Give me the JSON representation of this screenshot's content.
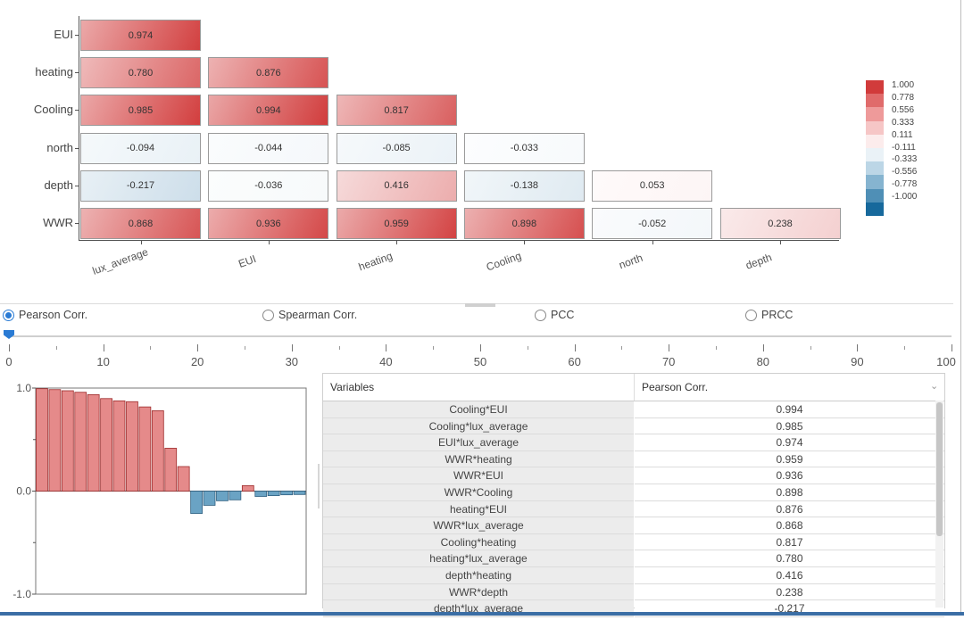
{
  "heatmap": {
    "row_labels": [
      "EUI",
      "heating",
      "Cooling",
      "north",
      "depth",
      "WWR"
    ],
    "col_labels": [
      "lux_average",
      "EUI",
      "heating",
      "Cooling",
      "north",
      "depth"
    ],
    "cells": [
      [
        "0.974"
      ],
      [
        "0.780",
        "0.876"
      ],
      [
        "0.985",
        "0.994",
        "0.817"
      ],
      [
        "-0.094",
        "-0.044",
        "-0.085",
        "-0.033"
      ],
      [
        "-0.217",
        "-0.036",
        "0.416",
        "-0.138",
        "0.053"
      ],
      [
        "0.868",
        "0.936",
        "0.959",
        "0.898",
        "-0.052",
        "0.238"
      ]
    ],
    "legend": {
      "labels": [
        "1.000",
        "0.778",
        "0.556",
        "0.333",
        "0.111",
        "-0.111",
        "-0.333",
        "-0.556",
        "-0.778",
        "-1.000"
      ],
      "colors": [
        "#d13b3b",
        "#e06b6b",
        "#ee9a9a",
        "#f6c6c6",
        "#fcecec",
        "#eaf2f7",
        "#bcd6e6",
        "#86b4d0",
        "#4f8fb6",
        "#17699c"
      ]
    }
  },
  "methods": {
    "options": [
      "Pearson Corr.",
      "Spearman Corr.",
      "PCC",
      "PRCC"
    ],
    "selected": "Pearson Corr."
  },
  "slider": {
    "value": 0,
    "min": 0,
    "max": 100,
    "tick_labels": [
      "0",
      "10",
      "20",
      "30",
      "40",
      "50",
      "60",
      "70",
      "80",
      "90",
      "100"
    ]
  },
  "bar_chart": {
    "y_ticks": [
      "1.0",
      "0.0",
      "-1.0"
    ],
    "values": [
      0.994,
      0.985,
      0.974,
      0.959,
      0.936,
      0.898,
      0.876,
      0.868,
      0.817,
      0.78,
      0.416,
      0.238,
      -0.217,
      -0.138,
      -0.094,
      -0.085,
      0.053,
      -0.052,
      -0.044,
      -0.036,
      -0.033
    ]
  },
  "table": {
    "headers": [
      "Variables",
      "Pearson Corr."
    ],
    "rows": [
      [
        "Cooling*EUI",
        "0.994"
      ],
      [
        "Cooling*lux_average",
        "0.985"
      ],
      [
        "EUI*lux_average",
        "0.974"
      ],
      [
        "WWR*heating",
        "0.959"
      ],
      [
        "WWR*EUI",
        "0.936"
      ],
      [
        "WWR*Cooling",
        "0.898"
      ],
      [
        "heating*EUI",
        "0.876"
      ],
      [
        "WWR*lux_average",
        "0.868"
      ],
      [
        "Cooling*heating",
        "0.817"
      ],
      [
        "heating*lux_average",
        "0.780"
      ],
      [
        "depth*heating",
        "0.416"
      ],
      [
        "WWR*depth",
        "0.238"
      ],
      [
        "depth*lux_average",
        "-0.217"
      ]
    ]
  },
  "colors": {
    "positive": "#d13b3b",
    "negative": "#17699c",
    "accent": "#2a7bd4"
  }
}
